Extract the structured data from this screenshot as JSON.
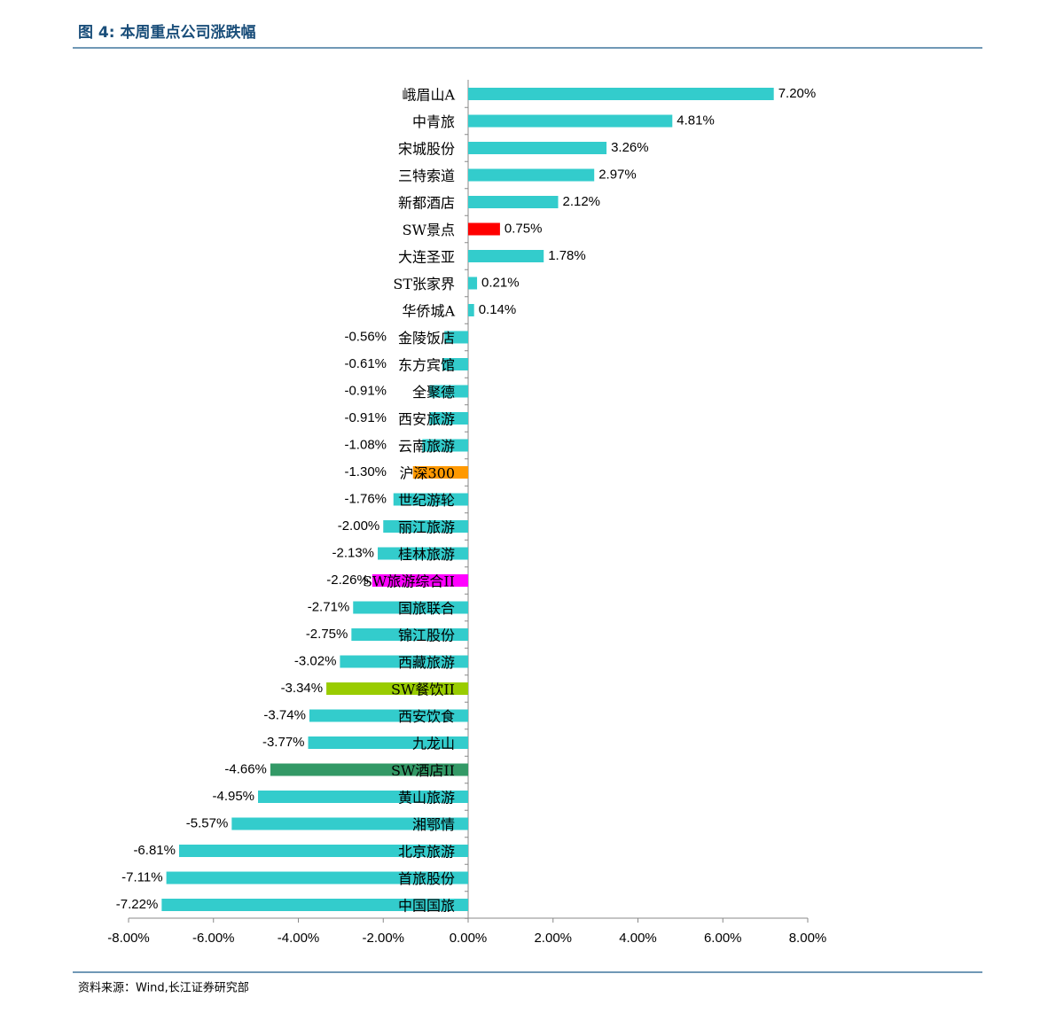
{
  "caption": "图 4: 本周重点公司涨跌幅",
  "source": "资料来源：Wind,长江证券研究部",
  "chart_data": {
    "type": "barh",
    "categories": [
      "峨眉山A",
      "中青旅",
      "宋城股份",
      "三特索道",
      "新都酒店",
      "SW景点",
      "大连圣亚",
      "ST张家界",
      "华侨城A",
      "金陵饭店",
      "东方宾馆",
      "全聚德",
      "西安旅游",
      "云南旅游",
      "沪深300",
      "世纪游轮",
      "丽江旅游",
      "桂林旅游",
      "SW旅游综合II",
      "国旅联合",
      "锦江股份",
      "西藏旅游",
      "SW餐饮II",
      "西安饮食",
      "九龙山",
      "SW酒店II",
      "黄山旅游",
      "湘鄂情",
      "北京旅游",
      "首旅股份",
      "中国国旅"
    ],
    "values": [
      7.2,
      4.81,
      3.26,
      2.97,
      2.12,
      0.75,
      1.78,
      0.21,
      0.14,
      -0.56,
      -0.61,
      -0.91,
      -0.91,
      -1.08,
      -1.3,
      -1.76,
      -2,
      -2.13,
      -2.26,
      -2.71,
      -2.75,
      -3.02,
      -3.34,
      -3.74,
      -3.77,
      -4.66,
      -4.95,
      -5.57,
      -6.81,
      -7.11,
      -7.22
    ],
    "value_labels": [
      "7.20%",
      "4.81%",
      "3.26%",
      "2.97%",
      "2.12%",
      "0.75%",
      "1.78%",
      "0.21%",
      "0.14%",
      "-0.56%",
      "-0.61%",
      "-0.91%",
      "-0.91%",
      "-1.08%",
      "-1.30%",
      "-1.76%",
      "-2.00%",
      "-2.13%",
      "-2.26%",
      "-2.71%",
      "-2.75%",
      "-3.02%",
      "-3.34%",
      "-3.74%",
      "-3.77%",
      "-4.66%",
      "-4.95%",
      "-5.57%",
      "-6.81%",
      "-7.11%",
      "-7.22%"
    ],
    "colors": [
      "#33cccc",
      "#33cccc",
      "#33cccc",
      "#33cccc",
      "#33cccc",
      "#ff0000",
      "#33cccc",
      "#33cccc",
      "#33cccc",
      "#33cccc",
      "#33cccc",
      "#33cccc",
      "#33cccc",
      "#33cccc",
      "#ff9900",
      "#33cccc",
      "#33cccc",
      "#33cccc",
      "#ff00ff",
      "#33cccc",
      "#33cccc",
      "#33cccc",
      "#99cc00",
      "#33cccc",
      "#33cccc",
      "#339966",
      "#33cccc",
      "#33cccc",
      "#33cccc",
      "#33cccc",
      "#33cccc"
    ],
    "xlim": [
      -8,
      8
    ],
    "xticks": [
      {
        "value": -8,
        "label": "-8.00%"
      },
      {
        "value": -6,
        "label": "-6.00%"
      },
      {
        "value": -4,
        "label": "-4.00%"
      },
      {
        "value": -2,
        "label": "-2.00%"
      },
      {
        "value": 0,
        "label": "0.00%"
      },
      {
        "value": 2,
        "label": "2.00%"
      },
      {
        "value": 4,
        "label": "4.00%"
      },
      {
        "value": 6,
        "label": "6.00%"
      },
      {
        "value": 8,
        "label": "8.00%"
      }
    ]
  }
}
